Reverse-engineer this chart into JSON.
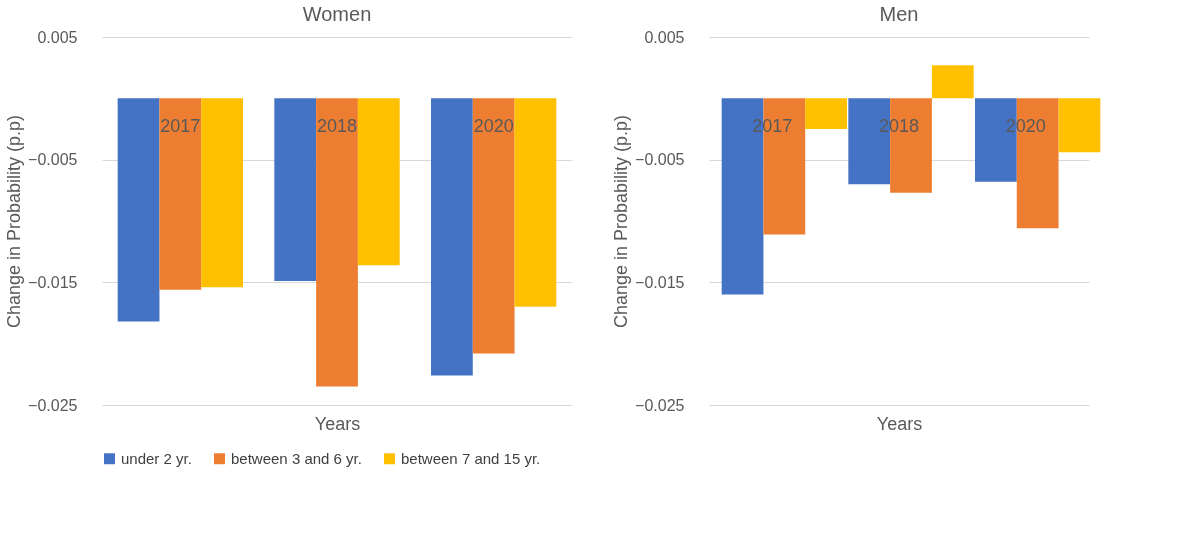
{
  "chart_data": [
    {
      "type": "bar",
      "title": "Women",
      "xlabel": "Years",
      "ylabel": "Change in Probability (p.p)",
      "categories": [
        "2017",
        "2018",
        "2020"
      ],
      "ylim": [
        -0.025,
        0.005
      ],
      "yticks": [
        -0.025,
        -0.015,
        -0.005,
        0.005
      ],
      "grid": "y",
      "legend": "bottom left",
      "series": [
        {
          "name": "under 2 yr.",
          "color": "#4472c4",
          "values": [
            -0.0182,
            -0.0149,
            -0.0226
          ]
        },
        {
          "name": "between 3 and 6 yr.",
          "color": "#ed7d31",
          "values": [
            -0.0156,
            -0.0235,
            -0.0208
          ]
        },
        {
          "name": "between 7 and 15 yr.",
          "color": "#ffc000",
          "values": [
            -0.0154,
            -0.0136,
            -0.017
          ]
        }
      ]
    },
    {
      "type": "bar",
      "title": "Men",
      "xlabel": "Years",
      "ylabel": "Change in Probability (p.p)",
      "categories": [
        "2017",
        "2018",
        "2020"
      ],
      "ylim": [
        -0.025,
        0.005
      ],
      "yticks": [
        -0.025,
        -0.015,
        -0.005,
        0.005
      ],
      "grid": "y",
      "legend": false,
      "series": [
        {
          "name": "under 2 yr.",
          "color": "#4472c4",
          "values": [
            -0.016,
            -0.007,
            -0.0068
          ]
        },
        {
          "name": "between 3 and 6 yr.",
          "color": "#ed7d31",
          "values": [
            -0.0111,
            -0.0077,
            -0.0106
          ]
        },
        {
          "name": "between 7 and 15 yr.",
          "color": "#ffc000",
          "values": [
            -0.0025,
            0.0027,
            -0.0044
          ]
        }
      ]
    }
  ]
}
